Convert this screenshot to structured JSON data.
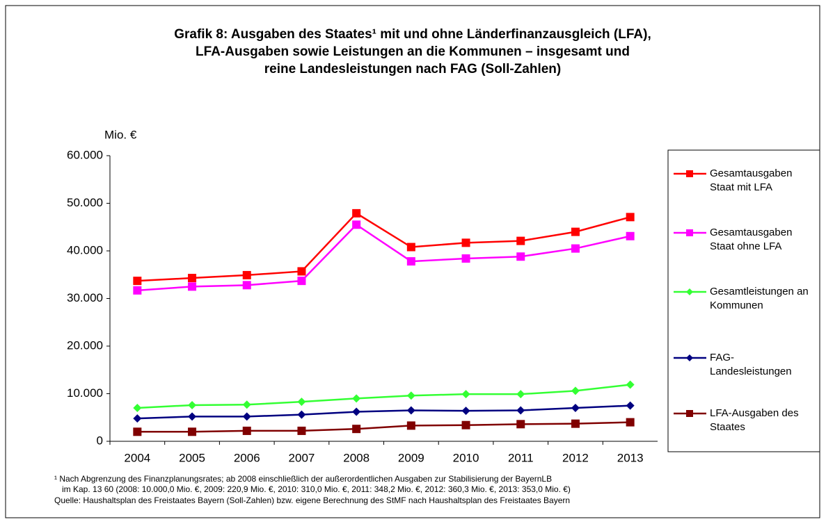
{
  "chart_data": {
    "type": "line",
    "title": [
      "Grafik 8: Ausgaben des Staates¹ mit und ohne Länderfinanzausgleich (LFA),",
      "LFA-Ausgaben sowie Leistungen an die Kommunen – insgesamt und",
      "reine Landesleistungen nach FAG   (Soll-Zahlen)"
    ],
    "y_label": "Mio. €",
    "categories": [
      "2004",
      "2005",
      "2006",
      "2007",
      "2008",
      "2009",
      "2010",
      "2011",
      "2012",
      "2013"
    ],
    "ylim": [
      0,
      60000
    ],
    "yticks": [
      0,
      {
        "value": 10000,
        "label": "10.000"
      },
      {
        "value": 20000,
        "label": "20.000"
      },
      {
        "value": 30000,
        "label": "30.000"
      },
      {
        "value": 40000,
        "label": "40.000"
      },
      {
        "value": 50000,
        "label": "50.000"
      },
      {
        "value": 60000,
        "label": "60.000"
      }
    ],
    "grid": false,
    "legend": "right",
    "series": [
      {
        "name": "Gesamtausgaben Staat mit LFA",
        "color": "#ff0000",
        "marker": "square",
        "values": [
          33700,
          34300,
          34900,
          35700,
          47900,
          40800,
          41700,
          42100,
          44000,
          47100
        ]
      },
      {
        "name": "Gesamtausgaben Staat ohne LFA",
        "color": "#ff00ff",
        "marker": "square",
        "values": [
          31700,
          32500,
          32800,
          33700,
          45500,
          37800,
          38400,
          38800,
          40500,
          43100
        ]
      },
      {
        "name": "Gesamtleistungen an Kommunen",
        "color": "#33ff33",
        "marker": "diamond",
        "values": [
          7000,
          7600,
          7700,
          8300,
          9000,
          9600,
          9900,
          9900,
          10600,
          11900
        ]
      },
      {
        "name": "FAG-Landesleistungen",
        "color": "#000080",
        "marker": "diamond",
        "values": [
          4800,
          5200,
          5200,
          5600,
          6200,
          6500,
          6400,
          6500,
          7000,
          7500
        ]
      },
      {
        "name": "LFA-Ausgaben des Staates",
        "color": "#800000",
        "marker": "square",
        "values": [
          2000,
          2000,
          2200,
          2200,
          2600,
          3300,
          3400,
          3600,
          3700,
          4000
        ]
      }
    ],
    "footnotes": [
      "¹ Nach Abgrenzung des Finanzplanungsrates; ab 2008 einschließlich der außerordentlichen Ausgaben zur Stabilisierung der BayernLB",
      "im Kap. 13 60 (2008: 10.000,0 Mio. €, 2009: 220,9 Mio. €, 2010: 310,0 Mio. €, 2011: 348,2 Mio. €, 2012: 360,3 Mio. €, 2013: 353,0 Mio. €)",
      "Quelle: Haushaltsplan des Freistaates Bayern (Soll-Zahlen) bzw. eigene Berechnung des StMF nach Haushaltsplan des Freistaates Bayern"
    ]
  }
}
